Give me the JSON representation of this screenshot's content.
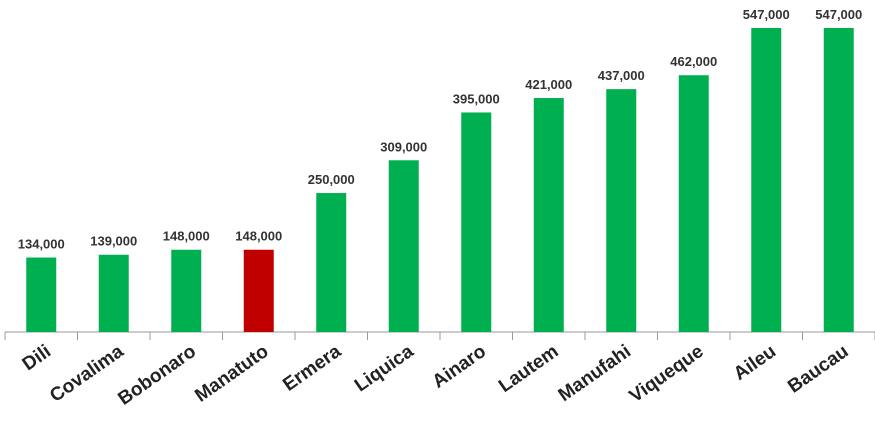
{
  "chart_data": {
    "type": "bar",
    "categories": [
      "Dili",
      "Covalima",
      "Bobonaro",
      "Manatuto",
      "Ermera",
      "Liquica",
      "Ainaro",
      "Lautem",
      "Manufahi",
      "Viqueque",
      "Aileu",
      "Baucau"
    ],
    "values": [
      134000,
      139000,
      148000,
      148000,
      250000,
      309000,
      395000,
      421000,
      437000,
      462000,
      547000,
      547000
    ],
    "value_labels": [
      "134,000",
      "139,000",
      "148,000",
      "148,000",
      "250,000",
      "309,000",
      "395,000",
      "421,000",
      "437,000",
      "462,000",
      "547,000",
      "547,000"
    ],
    "colors": [
      "#00b050",
      "#00b050",
      "#00b050",
      "#c00000",
      "#00b050",
      "#00b050",
      "#00b050",
      "#00b050",
      "#00b050",
      "#00b050",
      "#00b050",
      "#00b050"
    ]
  }
}
